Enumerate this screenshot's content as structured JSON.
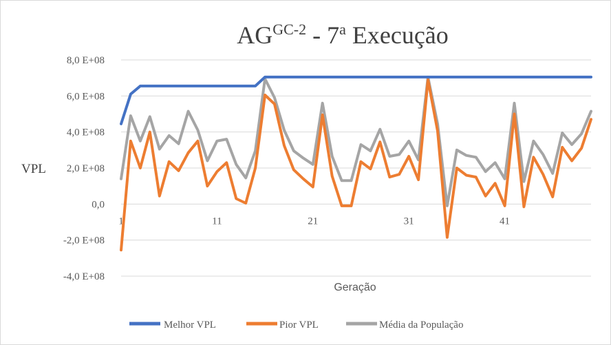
{
  "chart_data": {
    "type": "line",
    "title": {
      "main": "AG",
      "sup1": "GC-2",
      "mid": " - 7",
      "sup2": "a",
      "end": " Execução"
    },
    "xlabel": "Geração",
    "ylabel": "VPL",
    "ylim": [
      -400000000,
      800000000
    ],
    "y_ticks": [
      {
        "value": 800000000,
        "label": "8,0 E+08"
      },
      {
        "value": 600000000,
        "label": "6,0 E+08"
      },
      {
        "value": 400000000,
        "label": "4,0 E+08"
      },
      {
        "value": 200000000,
        "label": "2,0 E+08"
      },
      {
        "value": 0,
        "label": "0,0"
      },
      {
        "value": -200000000,
        "label": "-2,0 E+08"
      },
      {
        "value": -400000000,
        "label": "-4,0 E+08"
      }
    ],
    "x": [
      1,
      2,
      3,
      4,
      5,
      6,
      7,
      8,
      9,
      10,
      11,
      12,
      13,
      14,
      15,
      16,
      17,
      18,
      19,
      20,
      21,
      22,
      23,
      24,
      25,
      26,
      27,
      28,
      29,
      30,
      31,
      32,
      33,
      34,
      35,
      36,
      37,
      38,
      39,
      40,
      41,
      42,
      43,
      44,
      45,
      46,
      47,
      48,
      49,
      50
    ],
    "x_tick_labels": [
      "1",
      "11",
      "21",
      "31",
      "41"
    ],
    "grid": true,
    "legend_position": "bottom",
    "series": [
      {
        "name": "Melhor VPL",
        "color": "#4472c4",
        "values": [
          445000000,
          610000000,
          655000000,
          655000000,
          655000000,
          655000000,
          655000000,
          655000000,
          655000000,
          655000000,
          655000000,
          655000000,
          655000000,
          655000000,
          655000000,
          705000000,
          705000000,
          705000000,
          705000000,
          705000000,
          705000000,
          705000000,
          705000000,
          705000000,
          705000000,
          705000000,
          705000000,
          705000000,
          705000000,
          705000000,
          705000000,
          705000000,
          705000000,
          705000000,
          705000000,
          705000000,
          705000000,
          705000000,
          705000000,
          705000000,
          705000000,
          705000000,
          705000000,
          705000000,
          705000000,
          705000000,
          705000000,
          705000000,
          705000000,
          705000000
        ]
      },
      {
        "name": "Pior VPL",
        "color": "#ed7d31",
        "values": [
          -255000000,
          350000000,
          200000000,
          400000000,
          45000000,
          235000000,
          185000000,
          285000000,
          350000000,
          100000000,
          180000000,
          230000000,
          30000000,
          5000000,
          200000000,
          605000000,
          555000000,
          325000000,
          190000000,
          140000000,
          95000000,
          495000000,
          155000000,
          -10000000,
          -10000000,
          235000000,
          195000000,
          345000000,
          150000000,
          165000000,
          265000000,
          135000000,
          690000000,
          405000000,
          -185000000,
          200000000,
          160000000,
          150000000,
          45000000,
          115000000,
          -10000000,
          500000000,
          -15000000,
          260000000,
          165000000,
          40000000,
          315000000,
          240000000,
          310000000,
          470000000
        ]
      },
      {
        "name": "Média da População",
        "color": "#a5a5a5",
        "values": [
          140000000,
          490000000,
          350000000,
          485000000,
          305000000,
          380000000,
          335000000,
          515000000,
          410000000,
          240000000,
          350000000,
          360000000,
          220000000,
          145000000,
          295000000,
          695000000,
          590000000,
          410000000,
          295000000,
          255000000,
          220000000,
          560000000,
          265000000,
          130000000,
          130000000,
          330000000,
          295000000,
          415000000,
          265000000,
          275000000,
          350000000,
          245000000,
          705000000,
          445000000,
          -10000000,
          300000000,
          270000000,
          260000000,
          180000000,
          230000000,
          140000000,
          560000000,
          125000000,
          350000000,
          275000000,
          170000000,
          395000000,
          330000000,
          390000000,
          515000000
        ]
      }
    ]
  }
}
